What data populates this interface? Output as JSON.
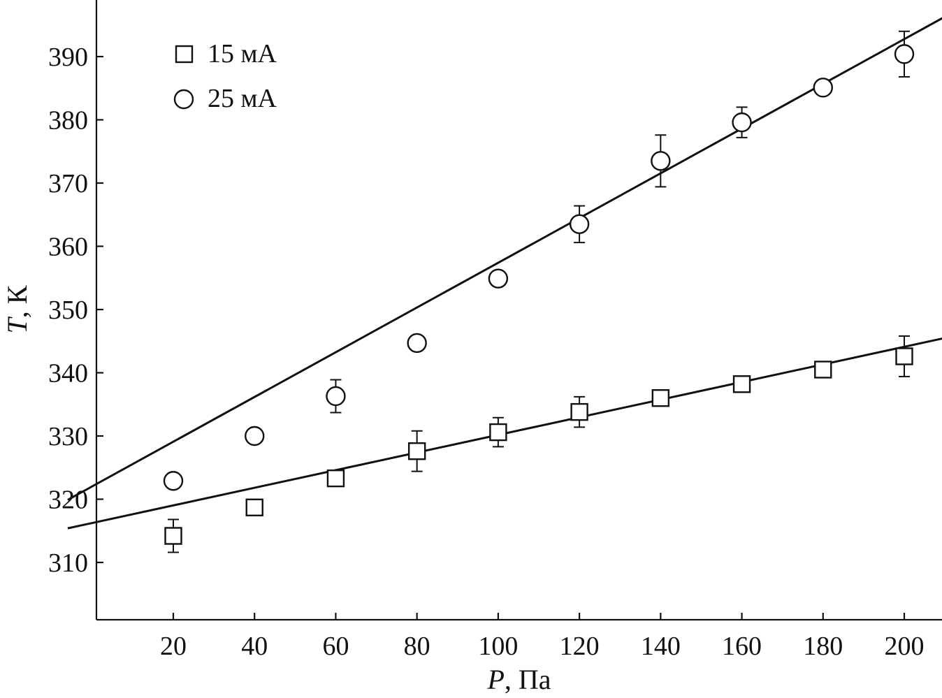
{
  "chart_data": {
    "type": "scatter",
    "xlabel_symbol": "P",
    "xlabel_unit": ", Па",
    "ylabel_symbol": "T",
    "ylabel_unit": ", К",
    "xlim": [
      0,
      210
    ],
    "ylim": [
      301,
      400
    ],
    "xticks": [
      20,
      40,
      60,
      80,
      100,
      120,
      140,
      160,
      180,
      200
    ],
    "yticks": [
      310,
      320,
      330,
      340,
      350,
      360,
      370,
      380,
      390
    ],
    "legend_position": "top-left",
    "series": [
      {
        "name": "15 мА",
        "marker": "square",
        "x": [
          20,
          40,
          60,
          80,
          100,
          120,
          140,
          160,
          180,
          200
        ],
        "y": [
          314.2,
          318.7,
          323.3,
          327.6,
          330.6,
          333.8,
          336.0,
          338.2,
          340.5,
          342.6
        ],
        "err_up": [
          2.6,
          0,
          0,
          3.2,
          2.3,
          2.4,
          0,
          0,
          0,
          3.2
        ],
        "err_down": [
          2.6,
          0,
          0,
          3.2,
          2.3,
          2.4,
          0,
          0,
          0,
          3.2
        ],
        "fit": {
          "x": [
            -6,
            210
          ],
          "y": [
            315.4,
            345.5
          ]
        }
      },
      {
        "name": "25 мА",
        "marker": "circle",
        "x": [
          20,
          40,
          60,
          80,
          100,
          120,
          140,
          160,
          180,
          200
        ],
        "y": [
          322.9,
          330.0,
          336.3,
          344.7,
          354.9,
          363.5,
          373.5,
          379.6,
          385.1,
          390.4
        ],
        "err_up": [
          0,
          0,
          2.6,
          0,
          0,
          2.9,
          4.1,
          2.4,
          0,
          3.6
        ],
        "err_down": [
          0,
          0,
          2.6,
          0,
          0,
          2.9,
          4.1,
          2.4,
          0,
          3.6
        ],
        "fit": {
          "x": [
            -6,
            210
          ],
          "y": [
            319.9,
            396.3
          ]
        }
      }
    ]
  }
}
